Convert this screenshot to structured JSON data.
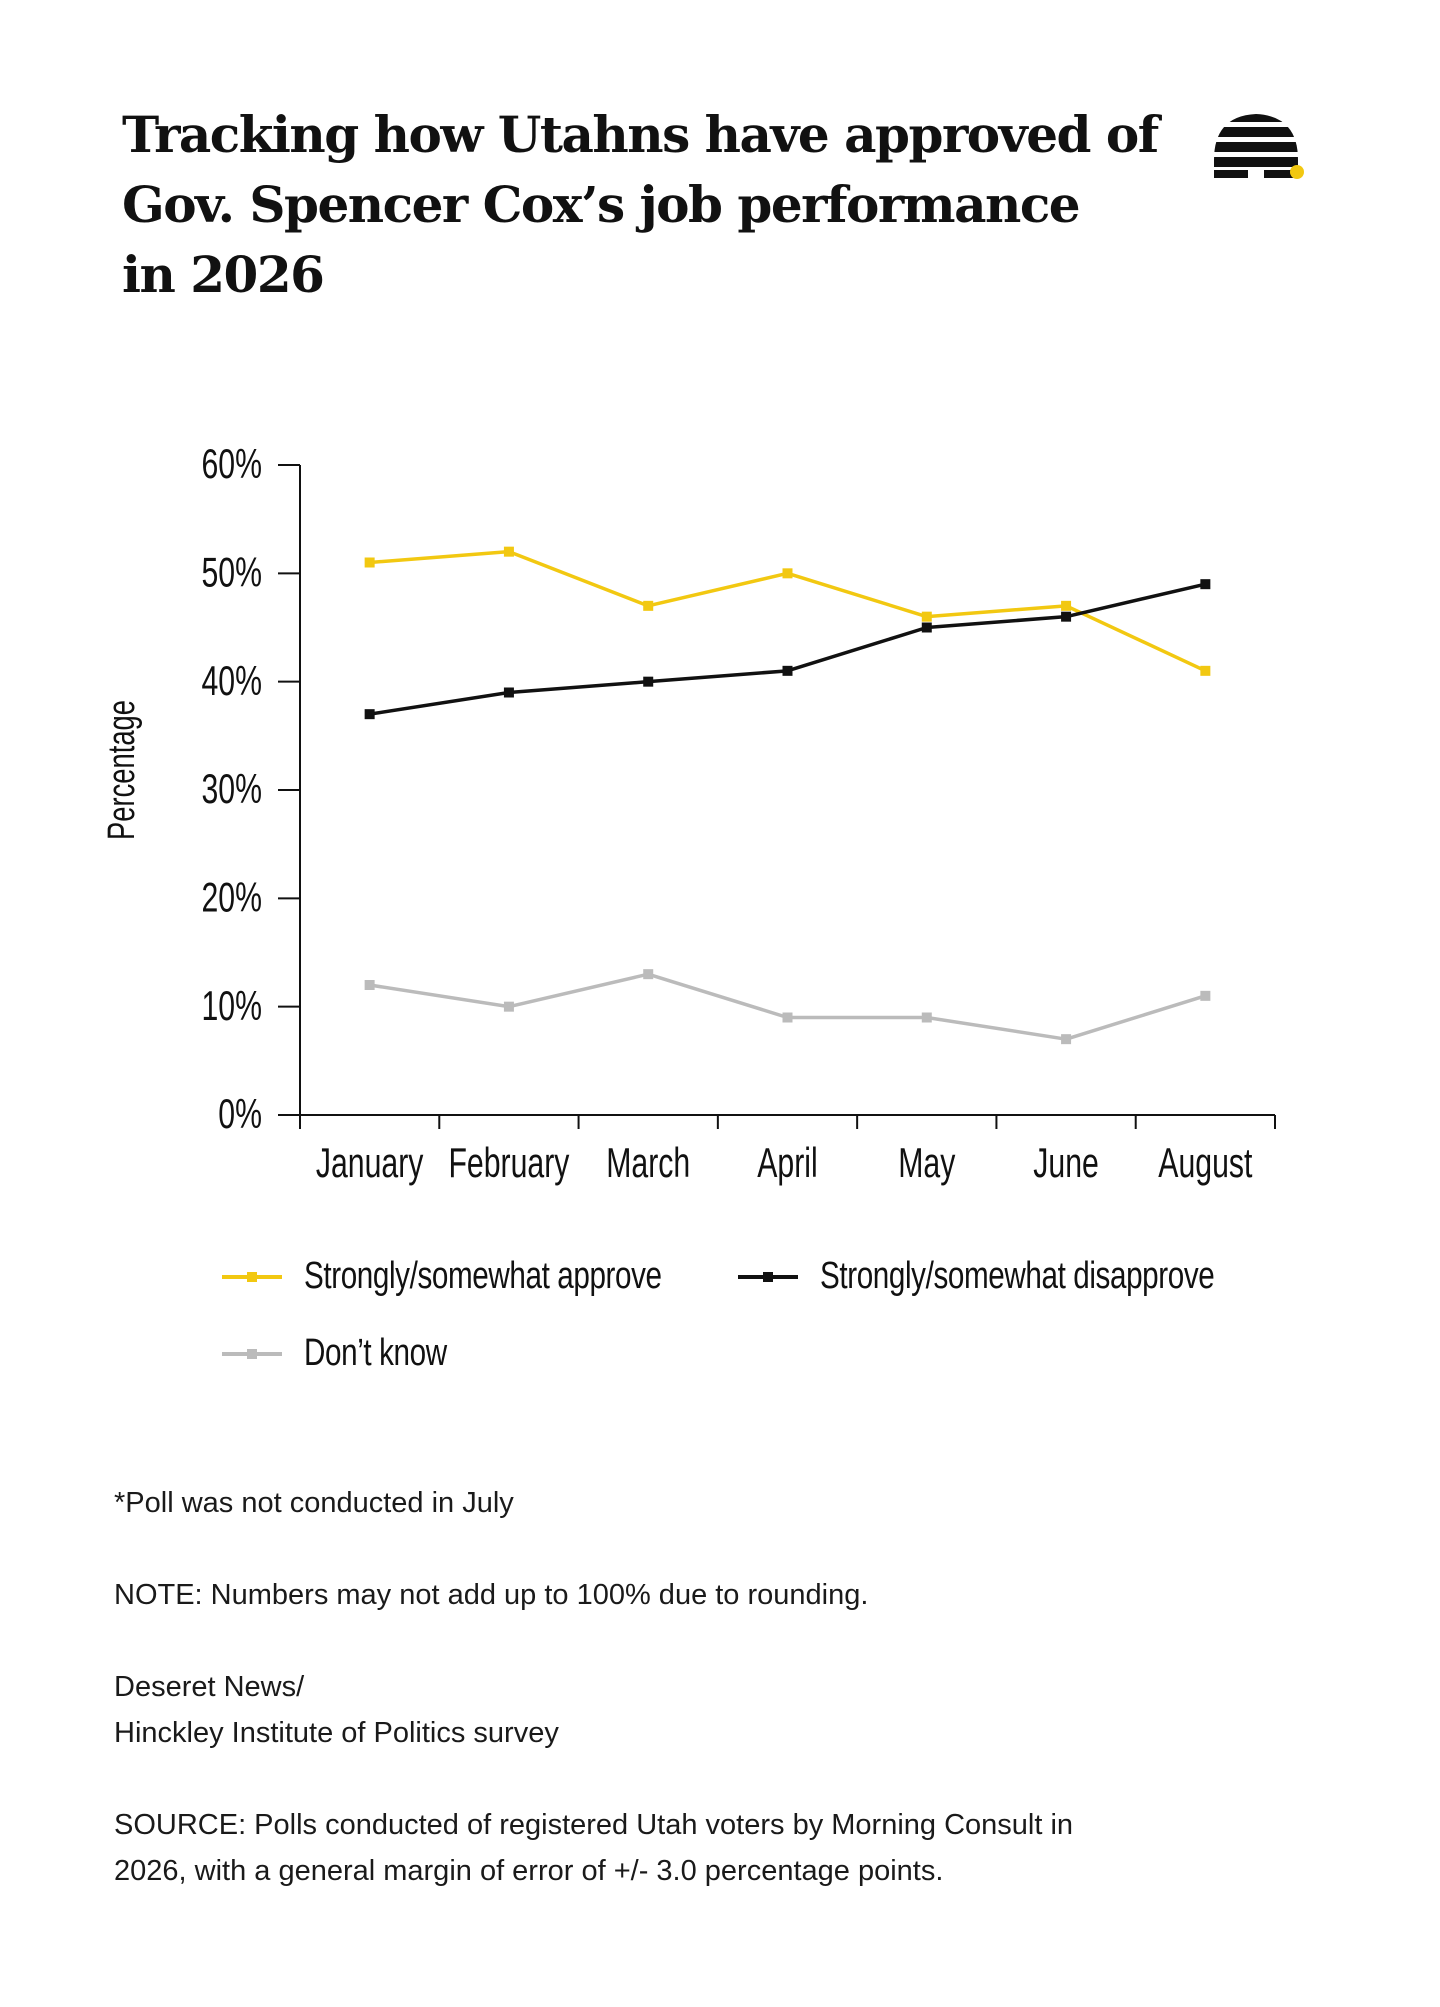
{
  "title_lines": [
    "Tracking how Utahns have approved of",
    "Gov. Spencer Cox’s job performance",
    "in 2026"
  ],
  "logo": {
    "icon": "beehive-icon",
    "dot_color": "#F2C811"
  },
  "chart_data": {
    "type": "line",
    "title": "Tracking how Utahns have approved of Gov. Spencer Cox’s job performance in 2026",
    "xlabel": "",
    "ylabel": "Percentage",
    "ylim": [
      0,
      60
    ],
    "yticks": [
      0,
      10,
      20,
      30,
      40,
      50,
      60
    ],
    "ytick_labels": [
      "0%",
      "10%",
      "20%",
      "30%",
      "40%",
      "50%",
      "60%"
    ],
    "categories": [
      "January",
      "February",
      "March",
      "April",
      "May",
      "June",
      "August"
    ],
    "series": [
      {
        "name": "Strongly/somewhat approve",
        "color": "#F2C811",
        "values": [
          51,
          52,
          47,
          50,
          46,
          47,
          41
        ]
      },
      {
        "name": "Strongly/somewhat disapprove",
        "color": "#111111",
        "values": [
          37,
          39,
          40,
          41,
          45,
          46,
          49
        ]
      },
      {
        "name": "Don’t know",
        "color": "#BBBBBB",
        "values": [
          12,
          10,
          13,
          9,
          9,
          7,
          11
        ]
      }
    ],
    "legend_position": "bottom",
    "grid": false
  },
  "notes": {
    "footnote": "*Poll was not conducted in July",
    "note": "NOTE: Numbers may not add up to 100% due to rounding.",
    "credit_lines": [
      "Deseret News/",
      "Hinckley Institute of Politics survey"
    ],
    "source_lines": [
      "SOURCE: Polls conducted of registered Utah voters by Morning Consult in",
      "2026, with a general margin of error of +/- 3.0 percentage points."
    ]
  }
}
